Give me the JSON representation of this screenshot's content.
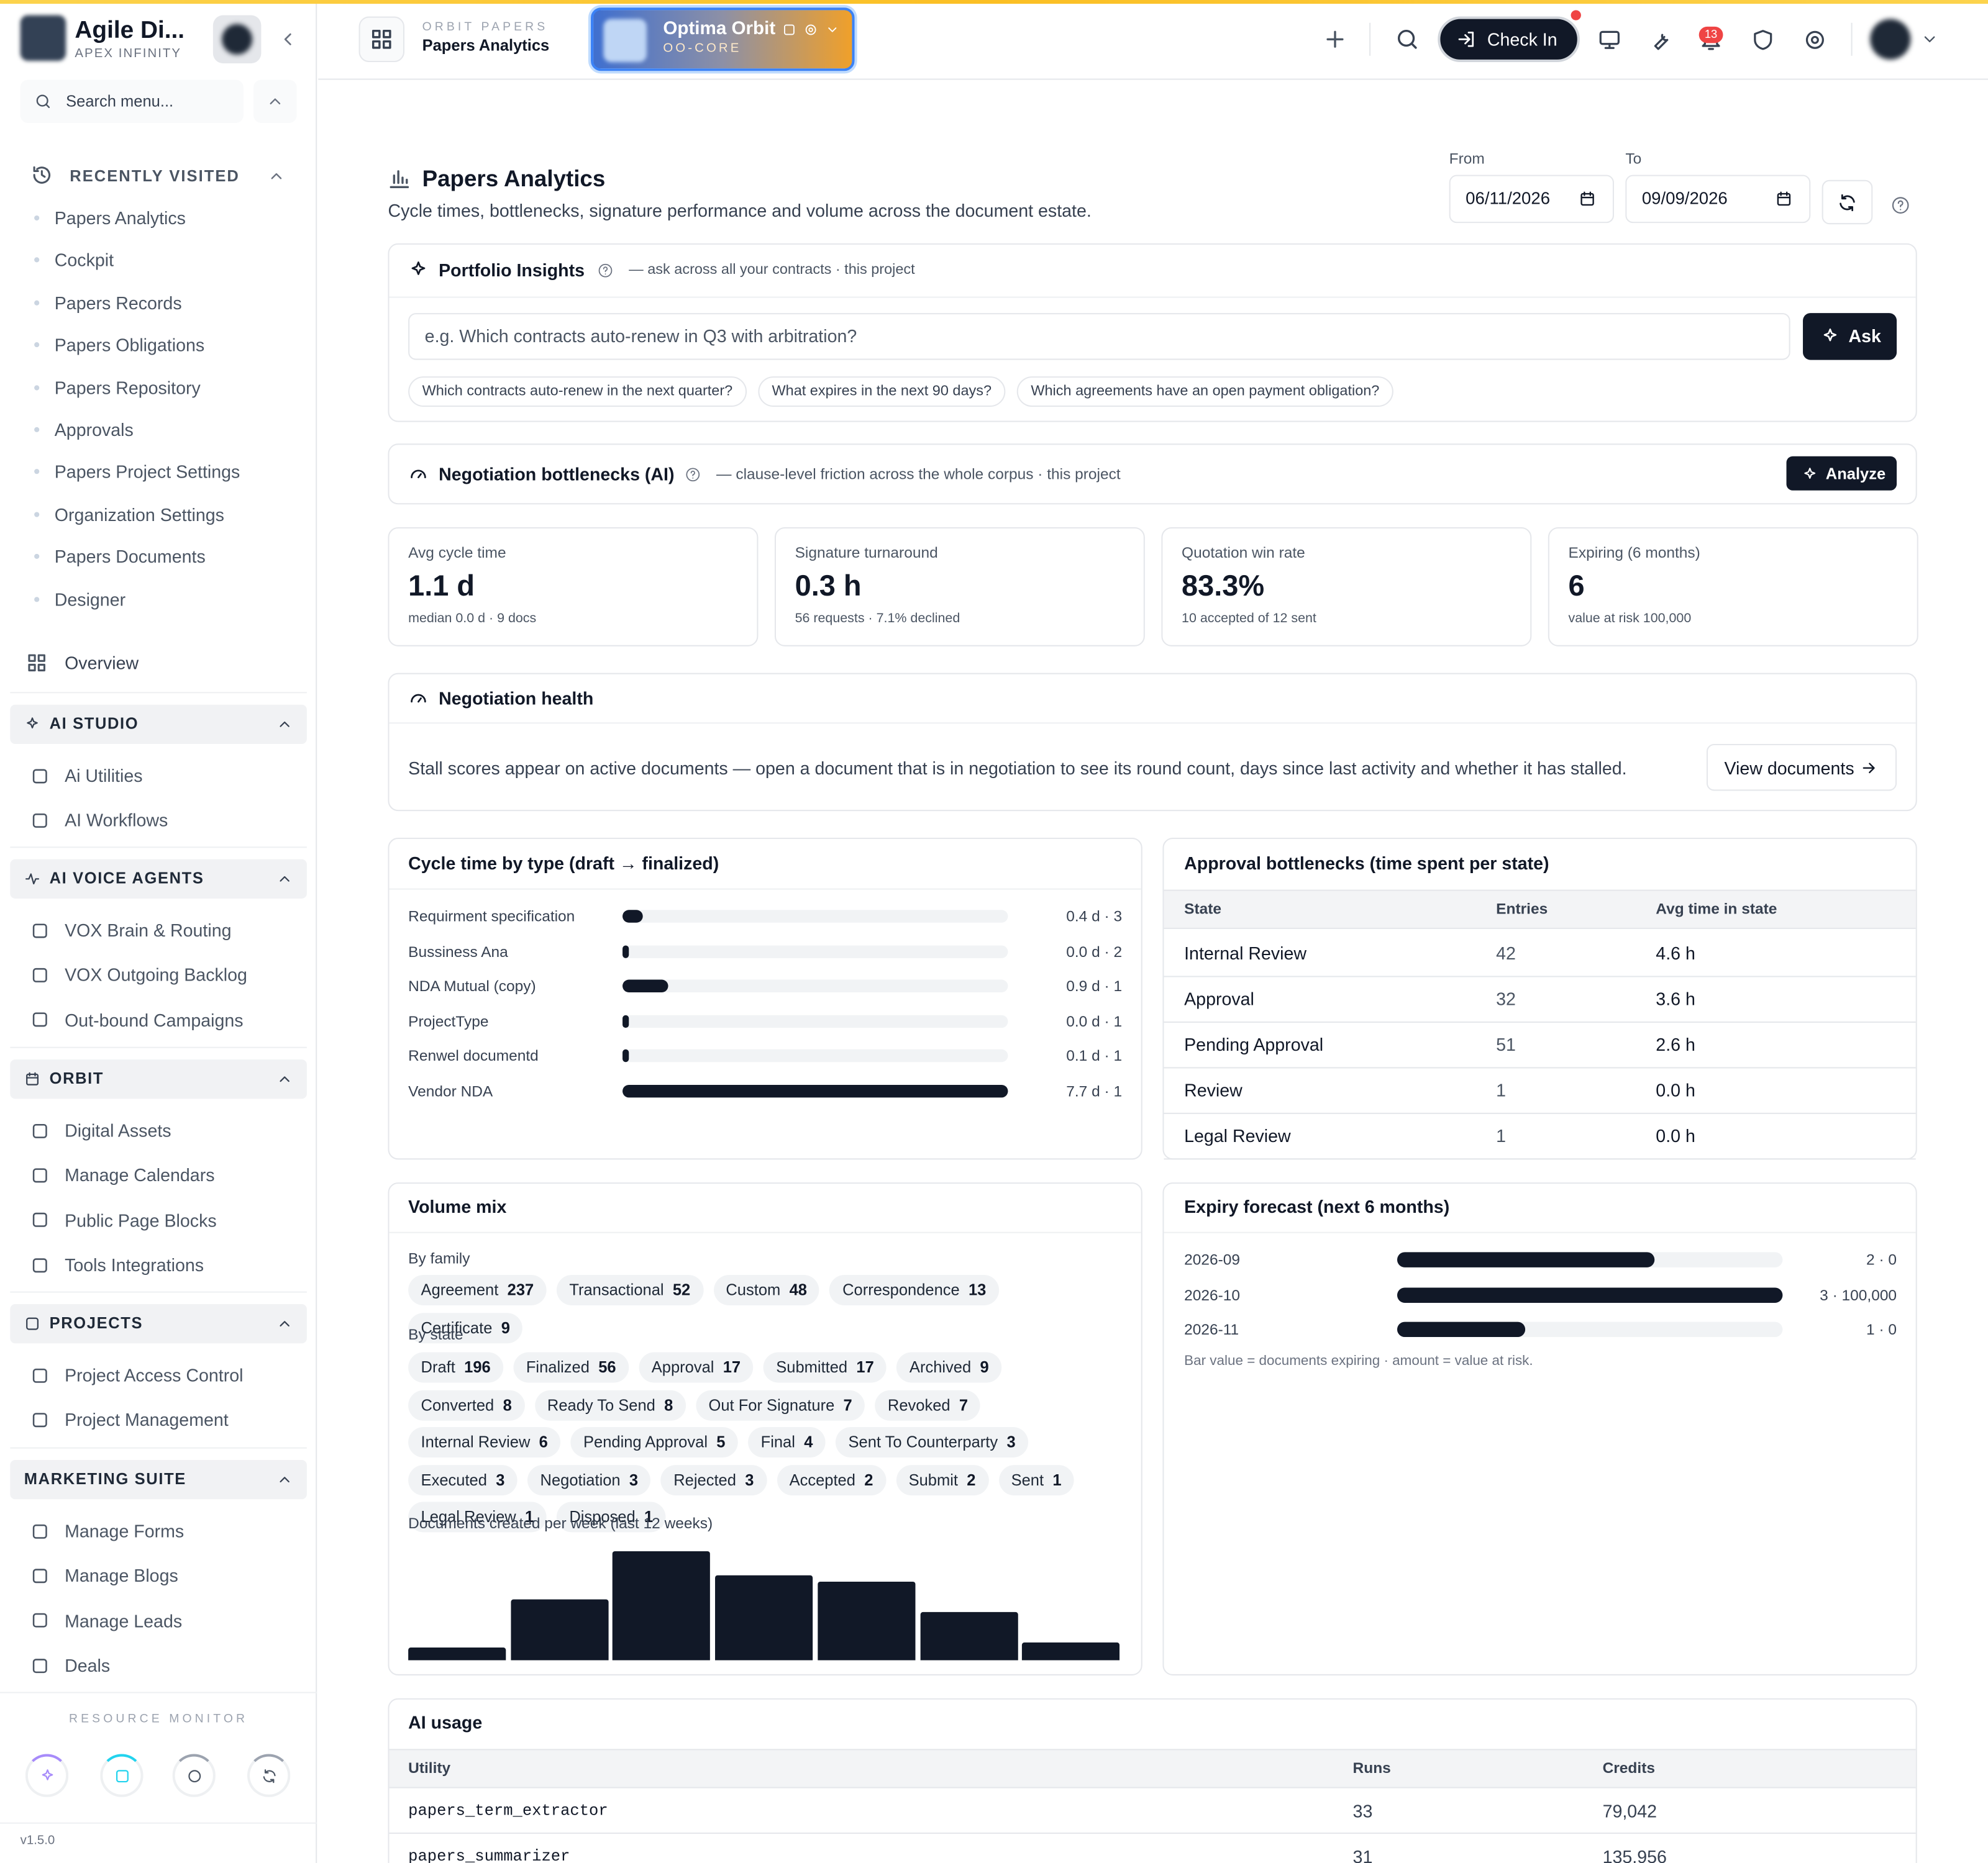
{
  "sidebar": {
    "brand": "Agile Di...",
    "org": "APEX INFINITY",
    "search": "Search menu...",
    "recent": {
      "title": "RECENTLY VISITED",
      "items": [
        "Papers Analytics",
        "Cockpit",
        "Papers Records",
        "Papers Obligations",
        "Papers Repository",
        "Approvals",
        "Papers Project Settings",
        "Organization Settings",
        "Papers Documents",
        "Designer"
      ]
    },
    "overview": "Overview",
    "sections": [
      {
        "title": "AI STUDIO",
        "items": [
          "Ai Utilities",
          "AI Workflows"
        ]
      },
      {
        "title": "AI VOICE AGENTS",
        "items": [
          "VOX Brain & Routing",
          "VOX Outgoing Backlog",
          "Out-bound Campaigns"
        ]
      },
      {
        "title": "ORBIT",
        "items": [
          "Digital Assets",
          "Manage Calendars",
          "Public Page Blocks",
          "Tools Integrations"
        ]
      },
      {
        "title": "PROJECTS",
        "items": [
          "Project Access Control",
          "Project Management"
        ]
      },
      {
        "title": "MARKETING SUITE",
        "items": [
          "Manage Forms",
          "Manage Blogs",
          "Manage Leads",
          "Deals"
        ]
      }
    ],
    "resource_monitor": "RESOURCE MONITOR",
    "version": "v1.5.0"
  },
  "topbar": {
    "app": "ORBIT PAPERS",
    "page": "Papers Analytics",
    "workspace": "Optima Orbit",
    "workspace_code": "OO-CORE",
    "check_in": "Check In",
    "notifications": "13"
  },
  "header": {
    "title": "Papers Analytics",
    "subtitle": "Cycle times, bottlenecks, signature performance and volume across the document estate.",
    "from_label": "From",
    "from": "06/11/2026",
    "to_label": "To",
    "to": "09/09/2026"
  },
  "insights": {
    "title": "Portfolio Insights",
    "hint": "— ask across all your contracts · this project",
    "placeholder": "e.g. Which contracts auto-renew in Q3 with arbitration?",
    "ask": "Ask",
    "suggestions": [
      "Which contracts auto-renew in the next quarter?",
      "What expires in the next 90 days?",
      "Which agreements have an open payment obligation?"
    ]
  },
  "bottlenecks_ai": {
    "title": "Negotiation bottlenecks (AI)",
    "hint": "— clause-level friction across the whole corpus · this project",
    "button": "Analyze"
  },
  "kpis": [
    {
      "label": "Avg cycle time",
      "value": "1.1 d",
      "note": "median 0.0 d · 9 docs"
    },
    {
      "label": "Signature turnaround",
      "value": "0.3 h",
      "note": "56 requests · 7.1% declined"
    },
    {
      "label": "Quotation win rate",
      "value": "83.3%",
      "note": "10 accepted of 12 sent"
    },
    {
      "label": "Expiring (6 months)",
      "value": "6",
      "note": "value at risk 100,000"
    }
  ],
  "health": {
    "title": "Negotiation health",
    "text": "Stall scores appear on active documents — open a document that is in negotiation to see its round count, days since last activity and whether it has stalled.",
    "button": "View documents"
  },
  "cycle_time": {
    "title": "Cycle time by type (draft → finalized)",
    "rows": [
      {
        "label": "Requirment specification",
        "value": 0.4,
        "value_label": "0.4 d · 3"
      },
      {
        "label": "Bussiness Ana",
        "value": 0.0,
        "value_label": "0.0 d · 2"
      },
      {
        "label": "NDA Mutual (copy)",
        "value": 0.9,
        "value_label": "0.9 d · 1"
      },
      {
        "label": "ProjectType",
        "value": 0.0,
        "value_label": "0.0 d · 1"
      },
      {
        "label": "Renwel documentd",
        "value": 0.1,
        "value_label": "0.1 d · 1"
      },
      {
        "label": "Vendor NDA",
        "value": 7.7,
        "value_label": "7.7 d · 1"
      }
    ]
  },
  "approval": {
    "title": "Approval bottlenecks (time spent per state)",
    "columns": [
      "State",
      "Entries",
      "Avg time in state"
    ],
    "rows": [
      [
        "Internal Review",
        42,
        "4.6 h"
      ],
      [
        "Approval",
        32,
        "3.6 h"
      ],
      [
        "Pending Approval",
        51,
        "2.6 h"
      ],
      [
        "Review",
        1,
        "0.0 h"
      ],
      [
        "Legal Review",
        1,
        "0.0 h"
      ]
    ]
  },
  "volume": {
    "title": "Volume mix",
    "family_label": "By family",
    "family": [
      {
        "name": "Agreement",
        "count": 237
      },
      {
        "name": "Transactional",
        "count": 52
      },
      {
        "name": "Custom",
        "count": 48
      },
      {
        "name": "Correspondence",
        "count": 13
      },
      {
        "name": "Certificate",
        "count": 9
      }
    ],
    "state_label": "By state",
    "states": [
      {
        "name": "Draft",
        "count": 196
      },
      {
        "name": "Finalized",
        "count": 56
      },
      {
        "name": "Approval",
        "count": 17
      },
      {
        "name": "Submitted",
        "count": 17
      },
      {
        "name": "Archived",
        "count": 9
      },
      {
        "name": "Converted",
        "count": 8
      },
      {
        "name": "Ready To Send",
        "count": 8
      },
      {
        "name": "Out For Signature",
        "count": 7
      },
      {
        "name": "Revoked",
        "count": 7
      },
      {
        "name": "Internal Review",
        "count": 6
      },
      {
        "name": "Pending Approval",
        "count": 5
      },
      {
        "name": "Final",
        "count": 4
      },
      {
        "name": "Sent To Counterparty",
        "count": 3
      },
      {
        "name": "Executed",
        "count": 3
      },
      {
        "name": "Negotiation",
        "count": 3
      },
      {
        "name": "Rejected",
        "count": 3
      },
      {
        "name": "Accepted",
        "count": 2
      },
      {
        "name": "Submit",
        "count": 2
      },
      {
        "name": "Sent",
        "count": 1
      },
      {
        "name": "Legal Review",
        "count": 1
      },
      {
        "name": "Disposed",
        "count": 1
      }
    ],
    "weekly_label": "Documents created per week (last 12 weeks)",
    "weekly": [
      2,
      10,
      18,
      14,
      13,
      8,
      3
    ]
  },
  "expiry": {
    "title": "Expiry forecast (next 6 months)",
    "rows": [
      {
        "month": "2026-09",
        "count": 2,
        "label": "2 · 0"
      },
      {
        "month": "2026-10",
        "count": 3,
        "label": "3 · 100,000"
      },
      {
        "month": "2026-11",
        "count": 1,
        "label": "1 · 0"
      }
    ],
    "note": "Bar value = documents expiring · amount = value at risk."
  },
  "ai_usage": {
    "title": "AI usage",
    "columns": [
      "Utility",
      "Runs",
      "Credits"
    ],
    "rows": [
      [
        "papers_term_extractor",
        33,
        "79,042"
      ],
      [
        "papers_summarizer",
        31,
        "135,956"
      ]
    ]
  }
}
